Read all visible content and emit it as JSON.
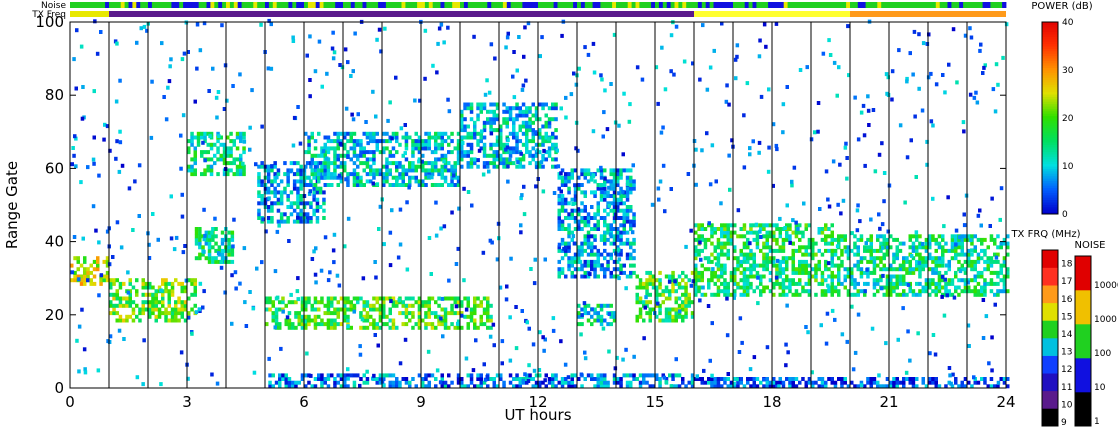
{
  "chart_data": {
    "type": "heatmap",
    "xlabel": "UT hours",
    "ylabel": "Range Gate",
    "xlim": [
      0,
      24
    ],
    "ylim": [
      0,
      100
    ],
    "x_ticks": [
      "0",
      "3",
      "6",
      "9",
      "12",
      "15",
      "18",
      "21",
      "24"
    ],
    "y_ticks": [
      "0",
      "20",
      "40",
      "60",
      "80",
      "100"
    ],
    "grid": "vertical lines every hour",
    "strip_labels": {
      "noise": "Noise",
      "txfreq": "TX Freq"
    },
    "power_scale": {
      "title": "POWER (dB)",
      "ticks": [
        "0",
        "10",
        "20",
        "30",
        "40"
      ],
      "range": [
        0,
        40
      ]
    },
    "freq_scale": {
      "title": "TX FRQ (MHz)",
      "ticks": [
        "9",
        "10",
        "11",
        "12",
        "13",
        "14",
        "15",
        "16",
        "17",
        "18"
      ]
    },
    "noise_scale": {
      "title": "NOISE",
      "ticks": [
        "1",
        "10",
        "100",
        "1000",
        "10000"
      ]
    },
    "tx_freq_strip": [
      {
        "start": 0,
        "end": 1,
        "color": "#e8e800"
      },
      {
        "start": 1,
        "end": 16,
        "color": "#5a1a8c"
      },
      {
        "start": 16,
        "end": 20,
        "color": "#ffff30"
      },
      {
        "start": 20,
        "end": 24,
        "color": "#ff9a1a"
      }
    ],
    "features": [
      {
        "desc": "band",
        "t0": 0,
        "t1": 1,
        "g0": 28,
        "g1": 36,
        "power": 24
      },
      {
        "desc": "band",
        "t0": 1,
        "t1": 3.2,
        "g0": 18,
        "g1": 30,
        "power": 20
      },
      {
        "desc": "band",
        "t0": 3.2,
        "t1": 4.2,
        "g0": 34,
        "g1": 44,
        "power": 14
      },
      {
        "desc": "band",
        "t0": 3,
        "t1": 4.5,
        "g0": 58,
        "g1": 70,
        "power": 14
      },
      {
        "desc": "band",
        "t0": 4.8,
        "t1": 6.5,
        "g0": 45,
        "g1": 62,
        "power": 8
      },
      {
        "desc": "band",
        "t0": 5,
        "t1": 10.8,
        "g0": 16,
        "g1": 25,
        "power": 18
      },
      {
        "desc": "band",
        "t0": 6,
        "t1": 10,
        "g0": 55,
        "g1": 70,
        "power": 10
      },
      {
        "desc": "band",
        "t0": 10,
        "t1": 12.5,
        "g0": 60,
        "g1": 78,
        "power": 10
      },
      {
        "desc": "band",
        "t0": 12.5,
        "t1": 14.5,
        "g0": 30,
        "g1": 60,
        "power": 8
      },
      {
        "desc": "band",
        "t0": 14.5,
        "t1": 16,
        "g0": 18,
        "g1": 32,
        "power": 18
      },
      {
        "desc": "band",
        "t0": 13,
        "t1": 14,
        "g0": 17,
        "g1": 23,
        "power": 12
      },
      {
        "desc": "band",
        "t0": 16,
        "t1": 19.5,
        "g0": 25,
        "g1": 45,
        "power": 16
      },
      {
        "desc": "band",
        "t0": 19.5,
        "t1": 24,
        "g0": 25,
        "g1": 42,
        "power": 14
      },
      {
        "desc": "band",
        "t0": 5,
        "t1": 16,
        "g0": 0,
        "g1": 4,
        "power": 6
      },
      {
        "desc": "band",
        "t0": 16,
        "t1": 24,
        "g0": 0,
        "g1": 3,
        "power": 4
      }
    ]
  }
}
